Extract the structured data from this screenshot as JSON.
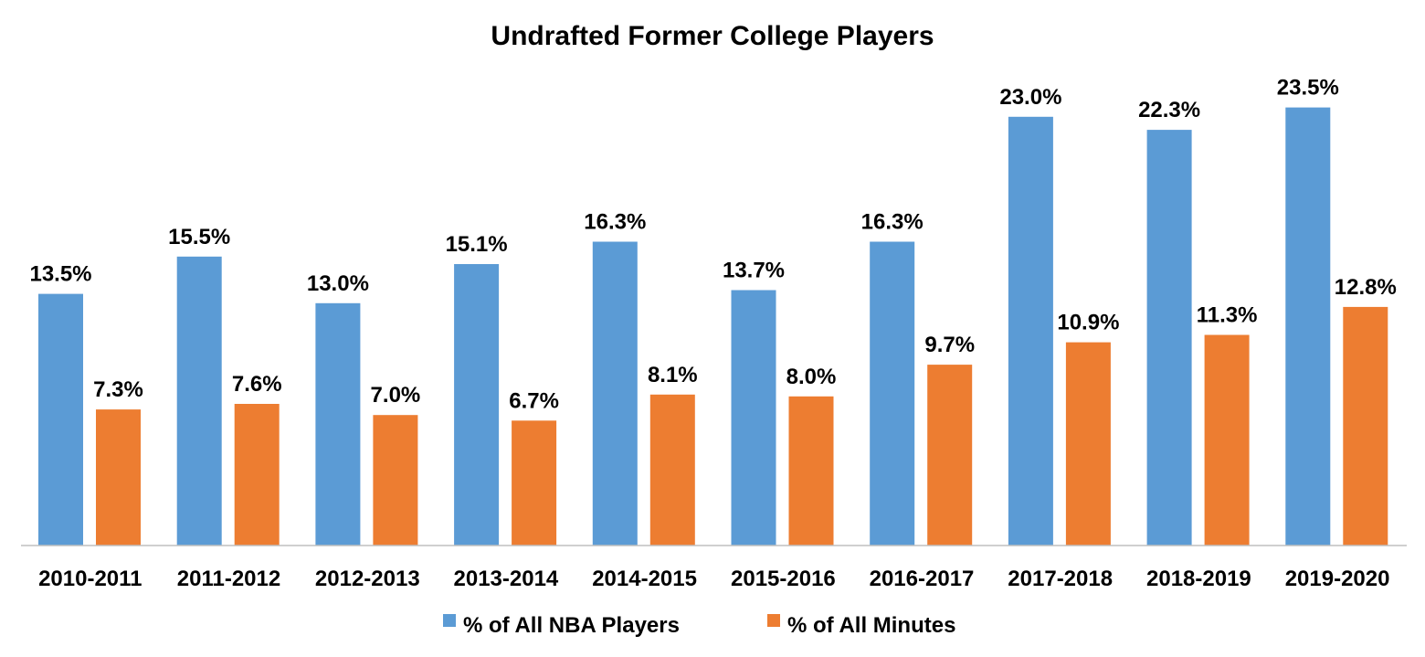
{
  "chart_data": {
    "type": "bar",
    "title": "Undrafted Former College Players",
    "xlabel": "",
    "ylabel": "",
    "ylim": [
      0,
      25
    ],
    "grid": false,
    "legend_position": "bottom",
    "categories": [
      "2010-2011",
      "2011-2012",
      "2012-2013",
      "2013-2014",
      "2014-2015",
      "2015-2016",
      "2016-2017",
      "2017-2018",
      "2018-2019",
      "2019-2020"
    ],
    "series": [
      {
        "name": "% of All NBA Players",
        "color": "#5B9BD5",
        "values": [
          13.5,
          15.5,
          13.0,
          15.1,
          16.3,
          13.7,
          16.3,
          23.0,
          22.3,
          23.5
        ],
        "labels": [
          "13.5%",
          "15.5%",
          "13.0%",
          "15.1%",
          "16.3%",
          "13.7%",
          "16.3%",
          "23.0%",
          "22.3%",
          "23.5%"
        ]
      },
      {
        "name": "% of All Minutes",
        "color": "#ED7D31",
        "values": [
          7.3,
          7.6,
          7.0,
          6.7,
          8.1,
          8.0,
          9.7,
          10.9,
          11.3,
          12.8
        ],
        "labels": [
          "7.3%",
          "7.6%",
          "7.0%",
          "6.7%",
          "8.1%",
          "8.0%",
          "9.7%",
          "10.9%",
          "11.3%",
          "12.8%"
        ]
      }
    ]
  }
}
